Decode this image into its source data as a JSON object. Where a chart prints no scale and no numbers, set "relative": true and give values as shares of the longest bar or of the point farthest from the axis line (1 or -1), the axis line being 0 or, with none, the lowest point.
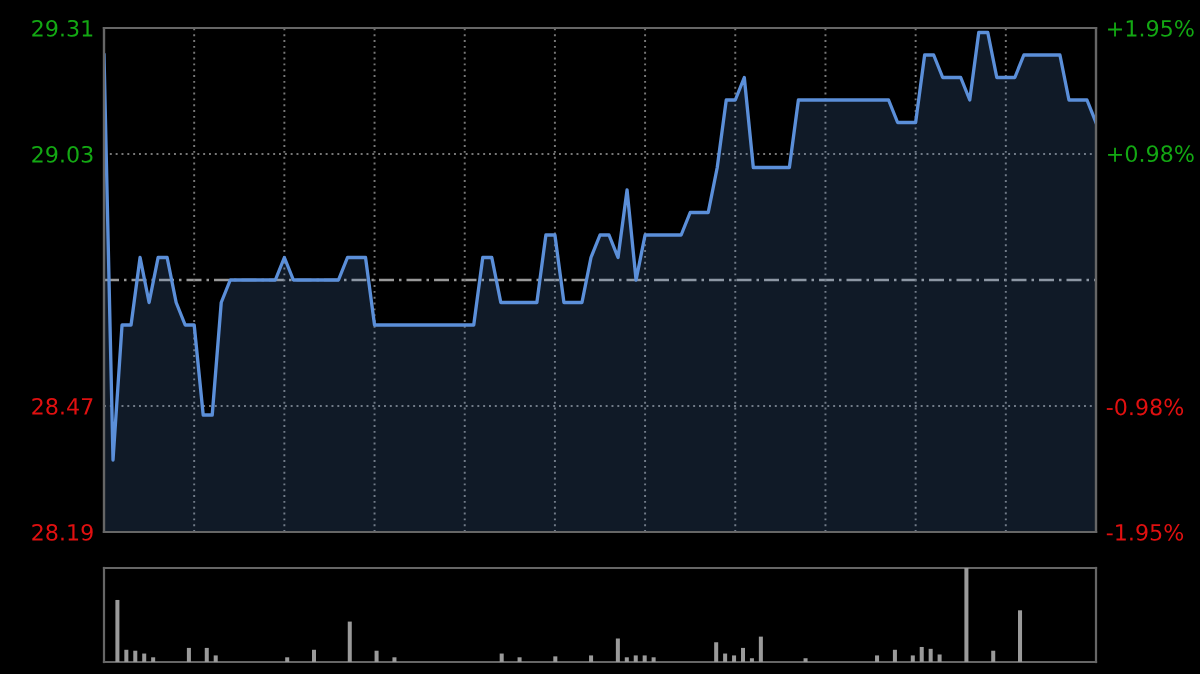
{
  "chart_data": [
    {
      "type": "area",
      "categories": [
        null,
        null,
        null,
        null,
        null,
        null,
        null,
        null,
        null,
        null,
        null,
        null,
        null,
        null,
        null,
        null,
        null,
        null,
        null,
        null,
        null,
        null,
        null,
        null,
        null,
        null,
        null,
        null,
        null,
        null,
        null,
        null,
        null,
        null,
        null,
        null,
        null,
        null,
        null,
        null,
        null,
        null,
        null,
        null,
        null,
        null,
        null,
        null,
        null,
        null,
        null,
        null,
        null,
        null,
        null,
        null,
        null,
        null,
        null,
        null,
        null,
        null,
        null,
        null,
        null,
        null,
        null,
        null,
        null,
        null,
        null,
        null,
        null,
        null,
        null,
        null,
        null,
        null,
        null,
        null,
        null,
        null,
        null,
        null,
        null,
        null,
        null,
        null,
        null,
        null,
        null,
        null,
        null,
        null,
        null,
        null,
        null,
        null,
        null,
        null,
        null,
        null,
        null,
        null,
        null,
        null,
        null,
        null,
        null,
        null,
        null
      ],
      "series": [
        {
          "color": "#5b8fd9",
          "values": [
            29.25,
            28.35,
            28.65,
            28.65,
            28.8,
            28.7,
            28.8,
            28.8,
            28.7,
            28.65,
            28.65,
            28.45,
            28.45,
            28.7,
            28.75,
            28.75,
            28.75,
            28.75,
            28.75,
            28.75,
            28.8,
            28.75,
            28.75,
            28.75,
            28.75,
            28.75,
            28.75,
            28.8,
            28.8,
            28.8,
            28.65,
            28.65,
            28.65,
            28.65,
            28.65,
            28.65,
            28.65,
            28.65,
            28.65,
            28.65,
            28.65,
            28.65,
            28.8,
            28.8,
            28.7,
            28.7,
            28.7,
            28.7,
            28.7,
            28.85,
            28.85,
            28.7,
            28.7,
            28.7,
            28.8,
            28.85,
            28.85,
            28.8,
            28.95,
            28.75,
            28.85,
            28.85,
            28.85,
            28.85,
            28.85,
            28.9,
            28.9,
            28.9,
            29.0,
            29.15,
            29.15,
            29.2,
            29.0,
            29.0,
            29.0,
            29.0,
            29.0,
            29.15,
            29.15,
            29.15,
            29.15,
            29.15,
            29.15,
            29.15,
            29.15,
            29.15,
            29.15,
            29.15,
            29.1,
            29.1,
            29.1,
            29.25,
            29.25,
            29.2,
            29.2,
            29.2,
            29.15,
            29.3,
            29.3,
            29.2,
            29.2,
            29.2,
            29.25,
            29.25,
            29.25,
            29.25,
            29.25,
            29.15,
            29.15,
            29.15,
            29.1
          ]
        }
      ],
      "ylim": [
        28.19,
        29.31
      ],
      "yticks": [
        28.19,
        28.47,
        29.03,
        29.31
      ],
      "y2lim": [
        -1.95,
        1.95
      ],
      "y2ticks": [
        {
          "value": -1.95,
          "label": "-1.95%"
        },
        {
          "value": -0.98,
          "label": "-0.98%"
        },
        {
          "value": 0.98,
          "label": "+0.98%"
        },
        {
          "value": 1.95,
          "label": "+1.95%"
        }
      ],
      "ref_lines": [
        {
          "axis": "y",
          "value": 28.75,
          "line_style": "dashed"
        }
      ],
      "grid": true
    },
    {
      "type": "bar",
      "relative": true,
      "categories": [
        null,
        null,
        null,
        null,
        null,
        null,
        null,
        null,
        null,
        null,
        null,
        null,
        null,
        null,
        null,
        null,
        null,
        null,
        null,
        null,
        null,
        null,
        null,
        null,
        null,
        null,
        null,
        null,
        null,
        null,
        null,
        null,
        null,
        null,
        null,
        null,
        null,
        null,
        null,
        null,
        null,
        null,
        null,
        null,
        null,
        null,
        null,
        null,
        null,
        null,
        null,
        null,
        null,
        null,
        null,
        null,
        null,
        null,
        null,
        null,
        null,
        null,
        null,
        null,
        null,
        null,
        null,
        null,
        null,
        null,
        null,
        null,
        null,
        null,
        null,
        null,
        null,
        null,
        null,
        null,
        null,
        null,
        null,
        null,
        null,
        null,
        null,
        null,
        null,
        null,
        null,
        null,
        null,
        null,
        null,
        null,
        null,
        null,
        null,
        null,
        null,
        null,
        null,
        null,
        null,
        null,
        null,
        null,
        null,
        null,
        null
      ],
      "values": [
        0,
        0.66,
        0.13,
        0.12,
        0.09,
        0.05,
        0,
        0,
        0,
        0.15,
        0,
        0.15,
        0.07,
        0,
        0,
        0,
        0,
        0,
        0,
        0,
        0.05,
        0,
        0,
        0.13,
        0,
        0,
        0,
        0.43,
        0,
        0,
        0.12,
        0,
        0.05,
        0,
        0,
        0,
        0,
        0,
        0,
        0,
        0,
        0,
        0,
        0,
        0.09,
        0,
        0.05,
        0,
        0,
        0,
        0.06,
        0,
        0,
        0,
        0.07,
        0,
        0,
        0.25,
        0.05,
        0.07,
        0.07,
        0.05,
        0,
        0,
        0,
        0,
        0,
        0,
        0.21,
        0.09,
        0.07,
        0.15,
        0.04,
        0.27,
        0,
        0,
        0,
        0,
        0.04,
        0,
        0,
        0,
        0,
        0,
        0,
        0,
        0.07,
        0,
        0.13,
        0,
        0.07,
        0.16,
        0.14,
        0.08,
        0,
        0,
        1.0,
        0,
        0,
        0.12,
        0,
        0,
        0.55,
        0,
        0,
        0,
        0,
        0,
        0,
        0,
        null
      ],
      "color": "#9a9a9a"
    }
  ]
}
